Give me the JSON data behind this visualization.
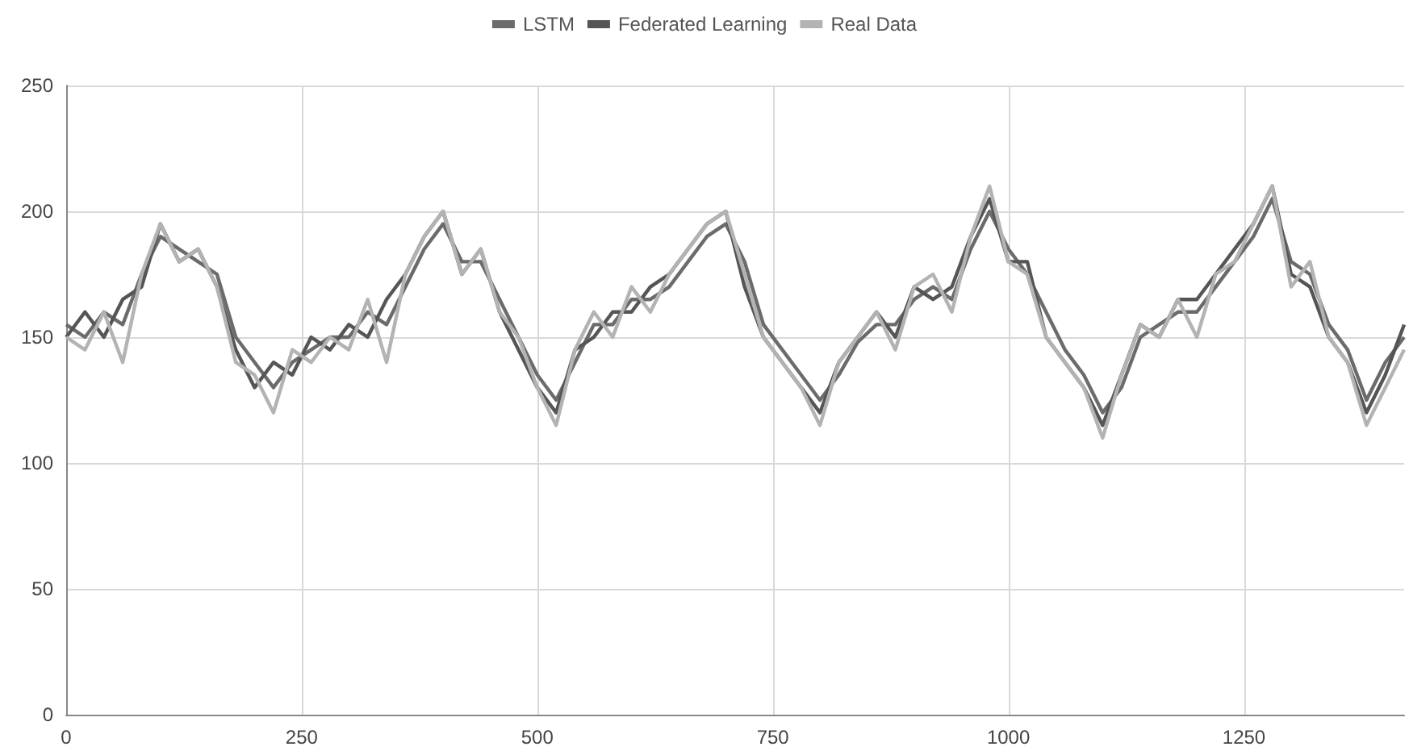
{
  "chart_data": {
    "type": "line",
    "x": [
      0,
      20,
      40,
      60,
      80,
      100,
      120,
      140,
      160,
      180,
      200,
      220,
      240,
      260,
      280,
      300,
      320,
      340,
      360,
      380,
      400,
      420,
      440,
      460,
      480,
      500,
      520,
      540,
      560,
      580,
      600,
      620,
      640,
      660,
      680,
      700,
      720,
      740,
      760,
      780,
      800,
      820,
      840,
      860,
      880,
      900,
      920,
      940,
      960,
      980,
      1000,
      1020,
      1040,
      1060,
      1080,
      1100,
      1120,
      1140,
      1160,
      1180,
      1200,
      1220,
      1240,
      1260,
      1280,
      1300,
      1320,
      1340,
      1360,
      1380,
      1400,
      1420
    ],
    "series": [
      {
        "name": "LSTM",
        "color": "#6b6b6b",
        "values": [
          155,
          150,
          160,
          155,
          175,
          190,
          185,
          180,
          175,
          150,
          140,
          130,
          140,
          145,
          150,
          150,
          160,
          155,
          170,
          185,
          195,
          180,
          180,
          165,
          150,
          135,
          125,
          140,
          155,
          155,
          165,
          165,
          170,
          180,
          190,
          195,
          180,
          155,
          145,
          135,
          125,
          135,
          148,
          155,
          155,
          165,
          170,
          165,
          185,
          200,
          185,
          175,
          160,
          145,
          135,
          120,
          130,
          150,
          155,
          160,
          160,
          170,
          180,
          190,
          205,
          180,
          175,
          155,
          145,
          125,
          140,
          150
        ]
      },
      {
        "name": "Federated Learning",
        "color": "#555555",
        "values": [
          150,
          160,
          150,
          165,
          170,
          195,
          180,
          185,
          170,
          145,
          130,
          140,
          135,
          150,
          145,
          155,
          150,
          165,
          175,
          190,
          200,
          175,
          185,
          160,
          145,
          130,
          120,
          145,
          150,
          160,
          160,
          170,
          175,
          185,
          195,
          200,
          170,
          150,
          140,
          130,
          120,
          140,
          150,
          160,
          150,
          170,
          165,
          170,
          190,
          205,
          180,
          180,
          150,
          140,
          130,
          115,
          135,
          155,
          150,
          165,
          165,
          175,
          185,
          195,
          210,
          175,
          170,
          150,
          140,
          120,
          135,
          155
        ]
      },
      {
        "name": "Real Data",
        "color": "#b3b3b3",
        "values": [
          150,
          145,
          160,
          140,
          175,
          195,
          180,
          185,
          170,
          140,
          135,
          120,
          145,
          140,
          150,
          145,
          165,
          140,
          175,
          190,
          200,
          175,
          185,
          160,
          150,
          130,
          115,
          145,
          160,
          150,
          170,
          160,
          175,
          185,
          195,
          200,
          175,
          150,
          140,
          130,
          115,
          140,
          150,
          160,
          145,
          170,
          175,
          160,
          190,
          210,
          180,
          175,
          150,
          140,
          130,
          110,
          135,
          155,
          150,
          165,
          150,
          175,
          180,
          195,
          210,
          170,
          180,
          150,
          140,
          115,
          130,
          145
        ]
      }
    ],
    "xlim": [
      0,
      1420
    ],
    "xticks": [
      0,
      250,
      500,
      750,
      1000,
      1250
    ],
    "ylim": [
      0,
      250
    ],
    "yticks": [
      0,
      50,
      100,
      150,
      200,
      250
    ],
    "grid": true,
    "legend": "top",
    "marker": "none",
    "line_style": "solid"
  }
}
